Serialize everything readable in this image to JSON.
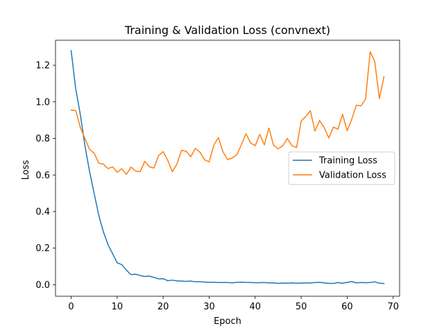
{
  "chart_data": {
    "type": "line",
    "title": "Training & Validation Loss (convnext)",
    "xlabel": "Epoch",
    "ylabel": "Loss",
    "xlim": [
      -3.4,
      71.4
    ],
    "ylim": [
      -0.063,
      1.337
    ],
    "x_ticks": [
      0,
      10,
      20,
      30,
      40,
      50,
      60,
      70
    ],
    "y_ticks": [
      0.0,
      0.2,
      0.4,
      0.6,
      0.8,
      1.0,
      1.2
    ],
    "x_tick_labels": [
      "0",
      "10",
      "20",
      "30",
      "40",
      "50",
      "60",
      "70"
    ],
    "y_tick_labels": [
      "0.0",
      "0.2",
      "0.4",
      "0.6",
      "0.8",
      "1.0",
      "1.2"
    ],
    "grid": false,
    "legend_position": "center-right",
    "x": [
      0,
      1,
      2,
      3,
      4,
      5,
      6,
      7,
      8,
      9,
      10,
      11,
      12,
      13,
      14,
      15,
      16,
      17,
      18,
      19,
      20,
      21,
      22,
      23,
      24,
      25,
      26,
      27,
      28,
      29,
      30,
      31,
      32,
      33,
      34,
      35,
      36,
      37,
      38,
      39,
      40,
      41,
      42,
      43,
      44,
      45,
      46,
      47,
      48,
      49,
      50,
      51,
      52,
      53,
      54,
      55,
      56,
      57,
      58,
      59,
      60,
      61,
      62,
      63,
      64,
      65,
      66,
      67,
      68
    ],
    "series": [
      {
        "name": "Training Loss",
        "color": "#1f77b4",
        "values": [
          1.28,
          1.07,
          0.93,
          0.76,
          0.62,
          0.5,
          0.38,
          0.29,
          0.22,
          0.17,
          0.12,
          0.11,
          0.08,
          0.055,
          0.058,
          0.05,
          0.045,
          0.047,
          0.04,
          0.032,
          0.033,
          0.022,
          0.025,
          0.021,
          0.02,
          0.018,
          0.02,
          0.016,
          0.016,
          0.015,
          0.013,
          0.014,
          0.012,
          0.012,
          0.012,
          0.01,
          0.013,
          0.014,
          0.013,
          0.012,
          0.011,
          0.011,
          0.012,
          0.01,
          0.01,
          0.007,
          0.009,
          0.008,
          0.01,
          0.008,
          0.009,
          0.01,
          0.009,
          0.012,
          0.013,
          0.01,
          0.007,
          0.007,
          0.012,
          0.008,
          0.013,
          0.017,
          0.01,
          0.012,
          0.011,
          0.012,
          0.016,
          0.008,
          0.007
        ]
      },
      {
        "name": "Validation Loss",
        "color": "#ff7f0e",
        "values": [
          0.955,
          0.952,
          0.86,
          0.8,
          0.74,
          0.72,
          0.665,
          0.66,
          0.635,
          0.645,
          0.615,
          0.635,
          0.603,
          0.643,
          0.622,
          0.618,
          0.675,
          0.645,
          0.638,
          0.706,
          0.728,
          0.68,
          0.618,
          0.66,
          0.735,
          0.73,
          0.7,
          0.745,
          0.725,
          0.683,
          0.672,
          0.763,
          0.805,
          0.728,
          0.684,
          0.693,
          0.71,
          0.765,
          0.826,
          0.776,
          0.76,
          0.822,
          0.765,
          0.856,
          0.763,
          0.743,
          0.76,
          0.8,
          0.76,
          0.75,
          0.895,
          0.92,
          0.952,
          0.84,
          0.898,
          0.86,
          0.802,
          0.862,
          0.85,
          0.932,
          0.842,
          0.905,
          0.982,
          0.978,
          1.015,
          1.275,
          1.22,
          1.018,
          1.138
        ]
      }
    ]
  }
}
